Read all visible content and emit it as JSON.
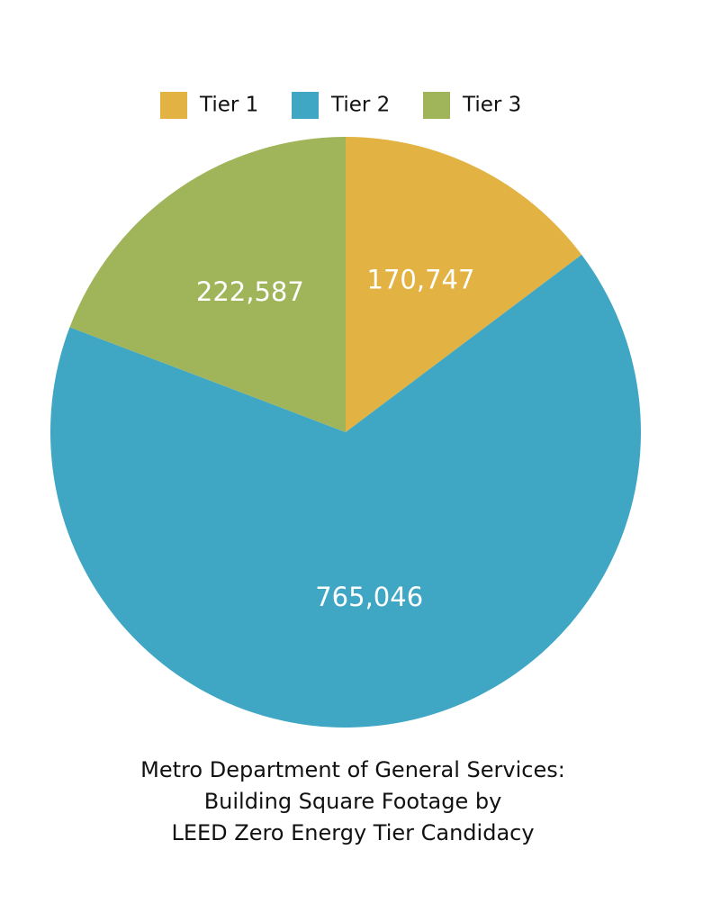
{
  "chart_data": {
    "type": "pie",
    "title": [
      "Metro Department of General Services:",
      "Building Square Footage by",
      "LEED Zero Energy Tier Candidacy"
    ],
    "categories": [
      "Tier 1",
      "Tier 2",
      "Tier 3"
    ],
    "values": [
      170747,
      765046,
      222587
    ],
    "value_labels": [
      "170,747",
      "765,046",
      "222,587"
    ],
    "colors": [
      "#e2b342",
      "#3fa6c4",
      "#a0b55a"
    ],
    "legend": "top"
  }
}
